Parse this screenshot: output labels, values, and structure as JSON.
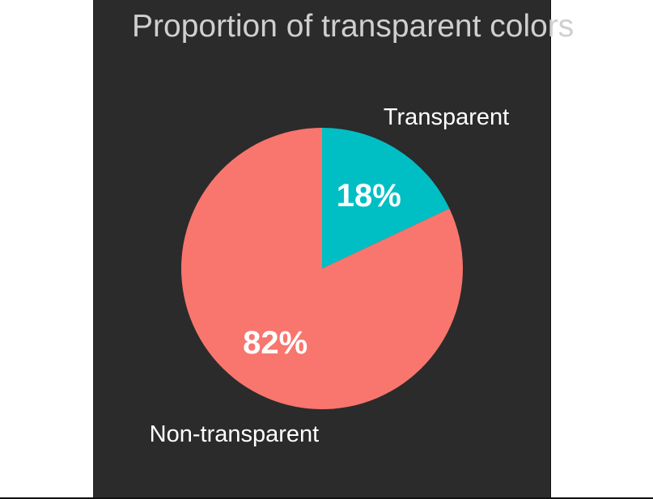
{
  "chart_data": {
    "type": "pie",
    "title": "Proportion of transparent colors",
    "slices": [
      {
        "label": "Transparent",
        "value": 18,
        "value_label": "18%",
        "color": "#00BFC4"
      },
      {
        "label": "Non-transparent",
        "value": 82,
        "value_label": "82%",
        "color": "#F8766D"
      }
    ],
    "start_angle": "12 o'clock",
    "direction": "clockwise",
    "legend": "none",
    "background": "#2b2b2b"
  }
}
